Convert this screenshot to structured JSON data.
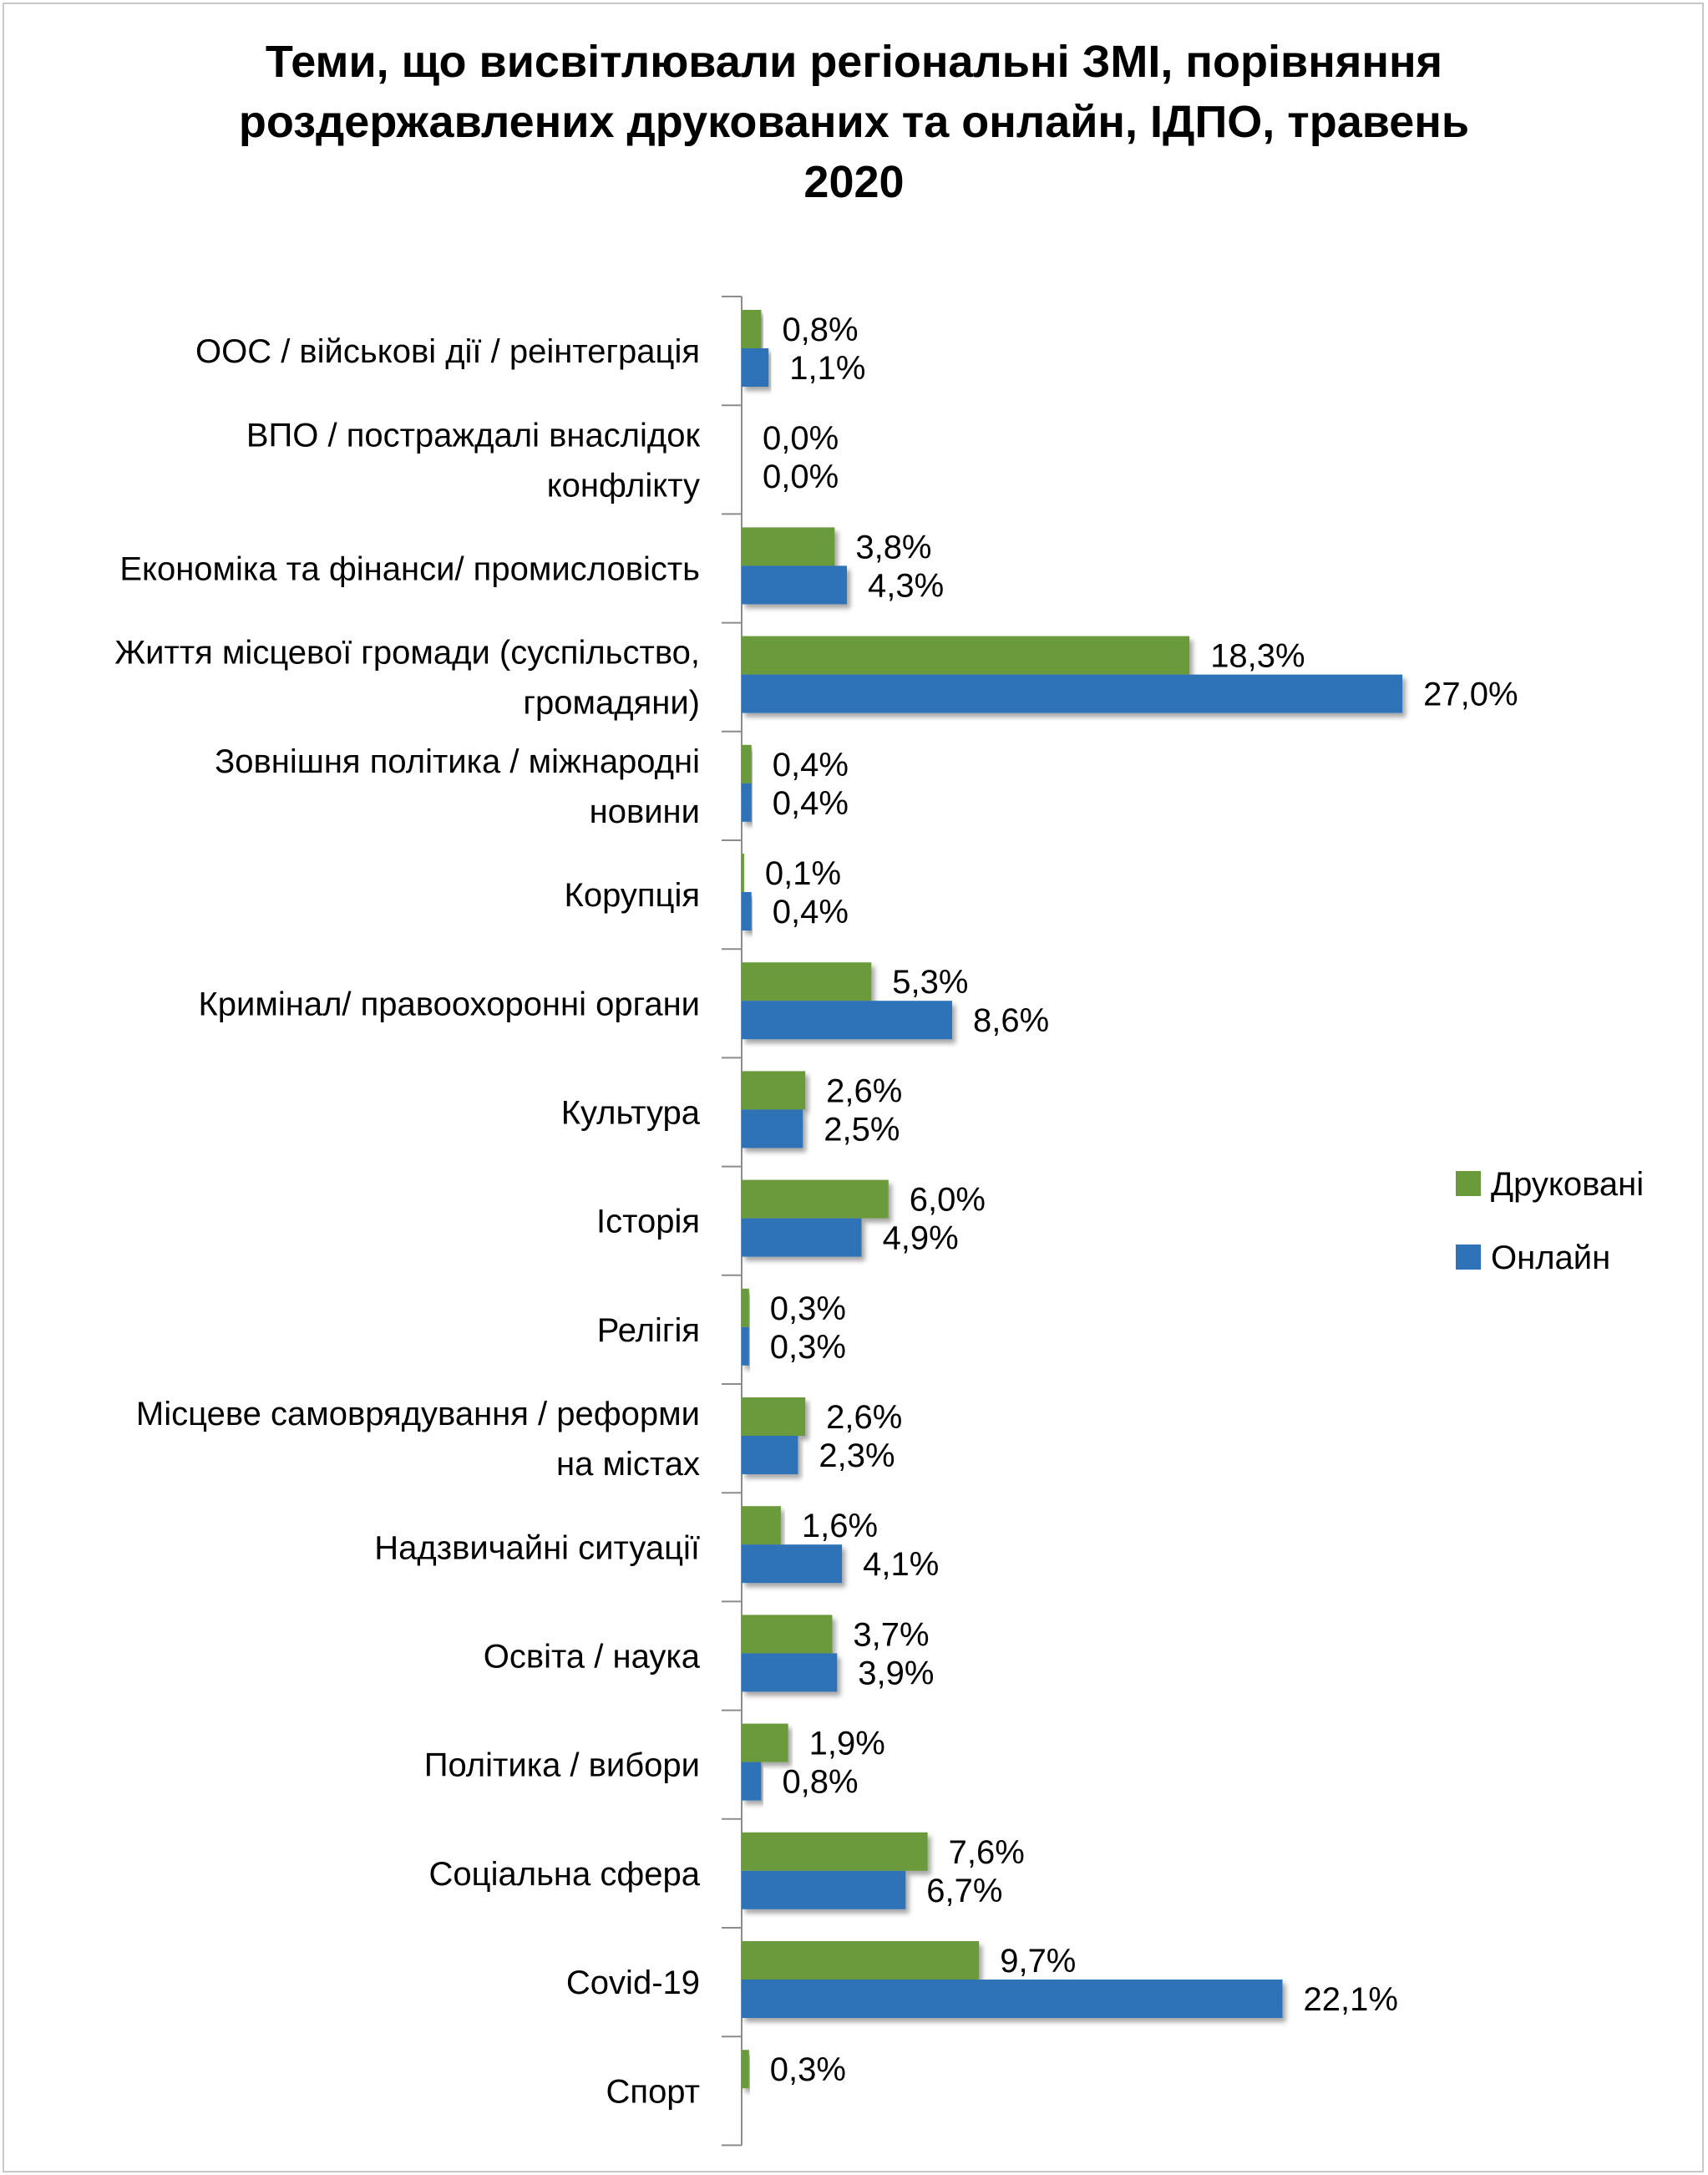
{
  "chart_data": {
    "type": "bar",
    "orientation": "horizontal",
    "title_lines": [
      "Теми, що висвітлювали регіональні ЗМІ, порівняння",
      "роздержавлених друкованих та онлайн, ІДПО, травень",
      "2020"
    ],
    "categories": [
      [
        "ООС / військові дії / реінтеграція"
      ],
      [
        "ВПО / постраждалі  внаслідок",
        "конфлікту"
      ],
      [
        "Економіка та фінанси/ промисловість"
      ],
      [
        "Життя місцевої громади (суспільство,",
        "громадяни)"
      ],
      [
        "Зовнішня політика / міжнародні",
        "новини"
      ],
      [
        "Корупція"
      ],
      [
        "Кримінал/ правоохоронні органи"
      ],
      [
        "Культура"
      ],
      [
        "Історія"
      ],
      [
        "Релігія"
      ],
      [
        "Місцеве самоврядування / реформи",
        "на містах"
      ],
      [
        "Надзвичайні ситуації"
      ],
      [
        "Освіта / наука"
      ],
      [
        "Політика / вибори "
      ],
      [
        "Соціальна сфера"
      ],
      [
        "Covid-19"
      ],
      [
        "Спорт"
      ]
    ],
    "series": [
      {
        "name": "Друковані",
        "color": "#6a9a3a",
        "values": [
          0.8,
          0.0,
          3.8,
          18.3,
          0.4,
          0.1,
          5.3,
          2.6,
          6.0,
          0.3,
          2.6,
          1.6,
          3.7,
          1.9,
          7.6,
          9.7,
          0.3
        ],
        "labels": [
          "0,8%",
          "0,0%",
          "3,8%",
          "18,3%",
          "0,4%",
          "0,1%",
          "5,3%",
          "2,6%",
          "6,0%",
          "0,3%",
          "2,6%",
          "1,6%",
          "3,7%",
          "1,9%",
          "7,6%",
          "9,7%",
          "0,3%"
        ]
      },
      {
        "name": "Онлайн",
        "color": "#2e72b8",
        "values": [
          1.1,
          0.0,
          4.3,
          27.0,
          0.4,
          0.4,
          8.6,
          2.5,
          4.9,
          0.3,
          2.3,
          4.1,
          3.9,
          0.8,
          6.7,
          22.1,
          null
        ],
        "labels": [
          "1,1%",
          "0,0%",
          "4,3%",
          "27,0%",
          "0,4%",
          "0,4%",
          "8,6%",
          "2,5%",
          "4,9%",
          "0,3%",
          "2,3%",
          "4,1%",
          "3,9%",
          "0,8%",
          "6,7%",
          "22,1%",
          null
        ]
      }
    ],
    "value_unit": "%",
    "xlim": [
      0,
      30
    ],
    "legend_position": "right",
    "grid": false
  }
}
